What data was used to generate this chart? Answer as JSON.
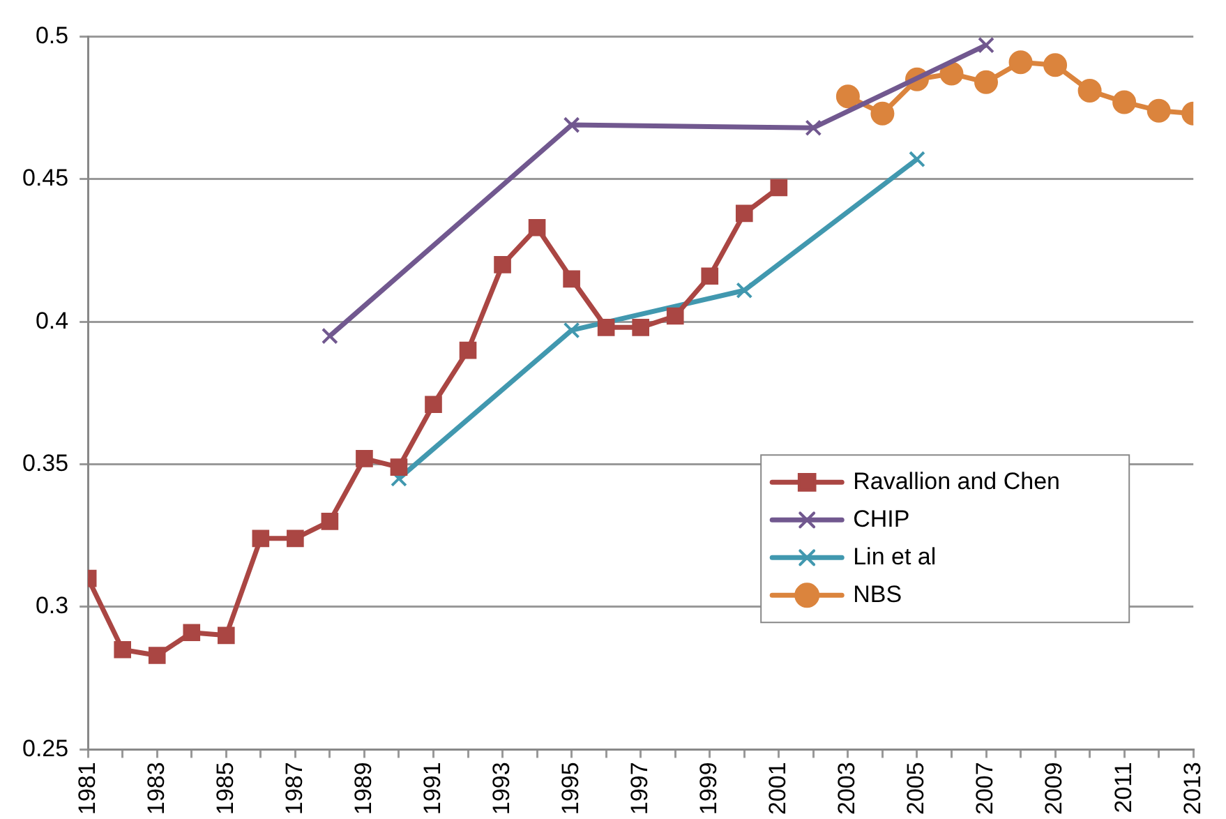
{
  "chart_data": {
    "type": "line",
    "xlim": [
      1981,
      2013
    ],
    "xticks": [
      1981,
      {
        "value": 1982,
        "label": null
      },
      1983,
      {
        "value": 1984,
        "label": null
      },
      1985,
      {
        "value": 1986,
        "label": null
      },
      1987,
      {
        "value": 1988,
        "label": null
      },
      1989,
      {
        "value": 1990,
        "label": null
      },
      1991,
      {
        "value": 1992,
        "label": null
      },
      1993,
      {
        "value": 1994,
        "label": null
      },
      1995,
      {
        "value": 1996,
        "label": null
      },
      1997,
      {
        "value": 1998,
        "label": null
      },
      1999,
      {
        "value": 2000,
        "label": null
      },
      2001,
      {
        "value": 2002,
        "label": null
      },
      2003,
      {
        "value": 2004,
        "label": null
      },
      2005,
      {
        "value": 2006,
        "label": null
      },
      2007,
      {
        "value": 2008,
        "label": null
      },
      2009,
      {
        "value": 2010,
        "label": null
      },
      2011,
      {
        "value": 2012,
        "label": null
      },
      2013
    ],
    "ylim": [
      0.25,
      0.5
    ],
    "yticks": [
      0.25,
      0.3,
      0.35,
      0.4,
      0.45,
      0.5
    ],
    "grid": "y",
    "legend": "bottom right",
    "series": [
      {
        "name": "Ravallion and Chen",
        "color": "#aa4643",
        "marker": "square",
        "x": [
          1981,
          1982,
          1983,
          1984,
          1985,
          1986,
          1987,
          1988,
          1989,
          1990,
          1991,
          1992,
          1993,
          1994,
          1995,
          1996,
          1997,
          1998,
          1999,
          2000,
          2001
        ],
        "values": [
          0.31,
          0.285,
          0.283,
          0.291,
          0.29,
          0.324,
          0.324,
          0.33,
          0.352,
          0.349,
          0.371,
          0.39,
          0.42,
          0.433,
          0.415,
          0.398,
          0.398,
          0.402,
          0.416,
          0.438,
          0.447
        ]
      },
      {
        "name": "CHIP",
        "color": "#71588f",
        "marker": "cross",
        "x": [
          1988,
          1995,
          2002,
          2007
        ],
        "values": [
          0.395,
          0.469,
          0.468,
          0.497
        ]
      },
      {
        "name": "Lin et al",
        "color": "#4198af",
        "marker": "cross",
        "x": [
          1990,
          1995,
          2000,
          2005
        ],
        "values": [
          0.345,
          0.397,
          0.411,
          0.457
        ]
      },
      {
        "name": "NBS",
        "color": "#db843d",
        "marker": "circle",
        "x": [
          2003,
          2004,
          2005,
          2006,
          2007,
          2008,
          2009,
          2010,
          2011,
          2012,
          2013
        ],
        "values": [
          0.479,
          0.473,
          0.485,
          0.487,
          0.484,
          0.491,
          0.49,
          0.481,
          0.477,
          0.474,
          0.473
        ]
      }
    ]
  }
}
